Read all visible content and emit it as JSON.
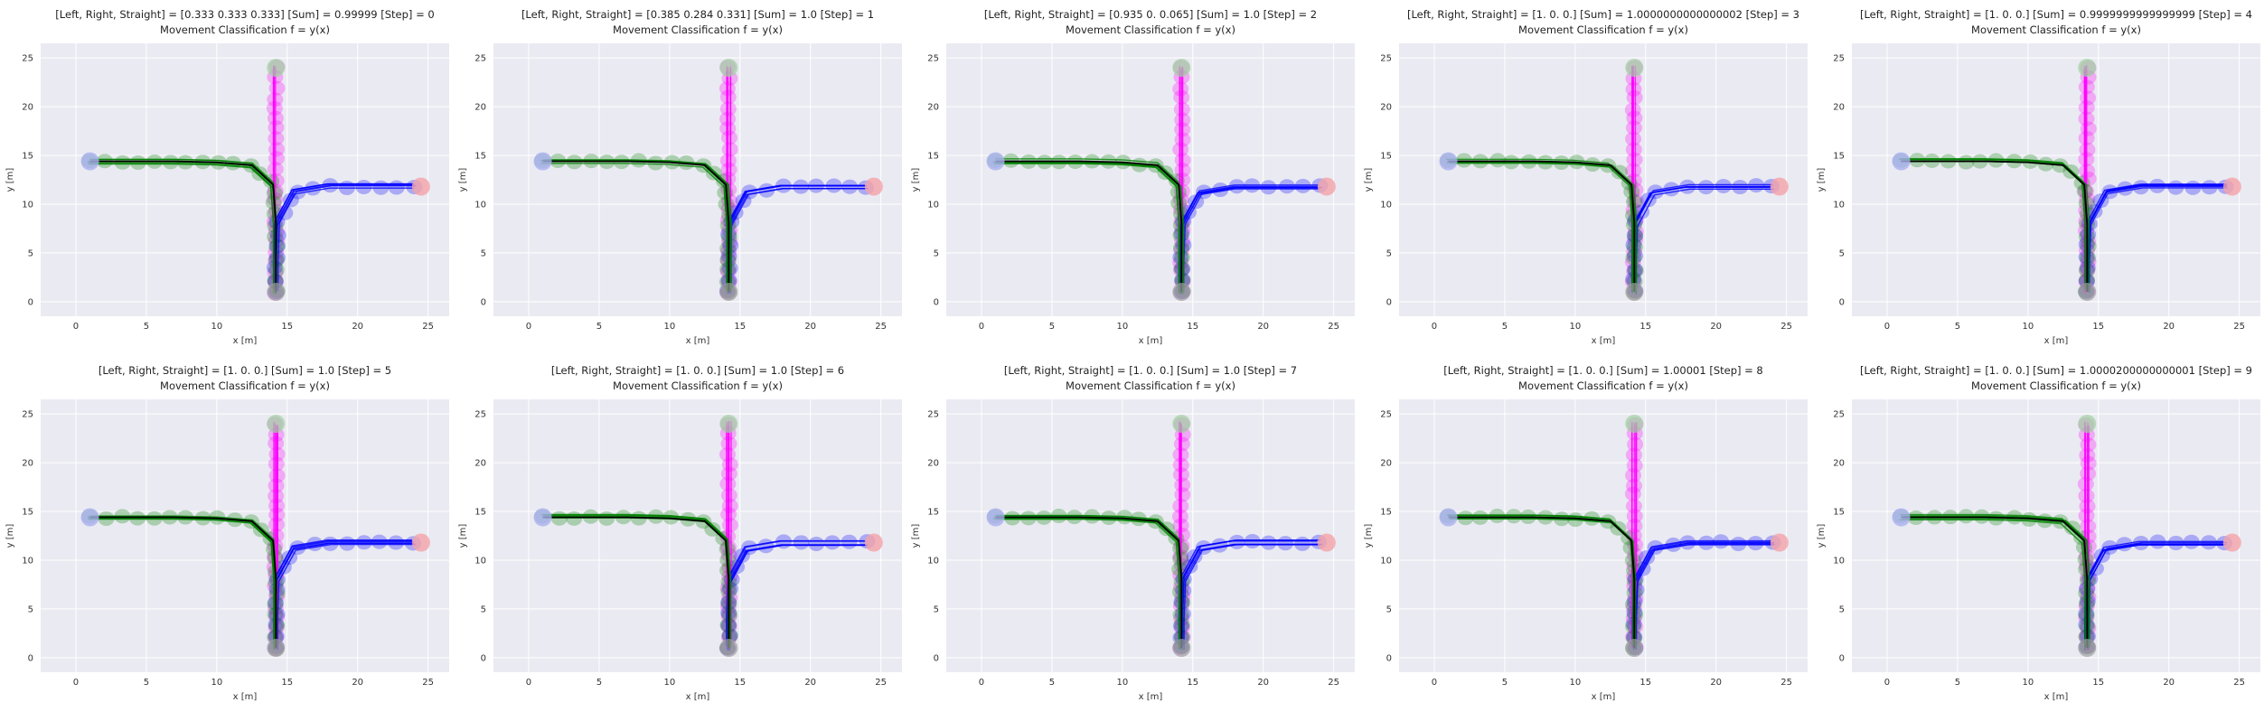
{
  "figure": {
    "title_line2": "Movement Classification f = y(x)",
    "xlabel": "x [m]",
    "ylabel": "y [m]",
    "xticks": [
      0,
      5,
      10,
      15,
      20,
      25
    ],
    "yticks": [
      0,
      5,
      10,
      15,
      20,
      25
    ],
    "xlim": [
      -2.5,
      26.5
    ],
    "ylim": [
      -1.5,
      26.5
    ],
    "colors": {
      "background": "#eaeaf2",
      "grid": "#ffffff",
      "left_track": "#008000",
      "right_track": "#0000ff",
      "straight_track": "#ff00ff",
      "main_path": "#000000",
      "start_marker_left": "#aab0f0",
      "start_marker_right": "#f4a3a8",
      "start_marker_bottom": "#a0a0a0",
      "start_marker_top": "#9fd19f"
    }
  },
  "chart_data": [
    {
      "type": "line",
      "step": 0,
      "title": "[Left, Right, Straight] = [0.333 0.333 0.333]   [Sum] = 0.99999   [Step] = 0",
      "probabilities": {
        "left": 0.333,
        "right": 0.333,
        "straight": 0.333
      },
      "sum": "0.99999"
    },
    {
      "type": "line",
      "step": 1,
      "title": "[Left, Right, Straight] = [0.385 0.284 0.331]   [Sum] = 1.0   [Step] = 1",
      "probabilities": {
        "left": 0.385,
        "right": 0.284,
        "straight": 0.331
      },
      "sum": "1.0"
    },
    {
      "type": "line",
      "step": 2,
      "title": "[Left, Right, Straight] = [0.935 0.    0.065]   [Sum] = 1.0   [Step] = 2",
      "probabilities": {
        "left": 0.935,
        "right": 0.0,
        "straight": 0.065
      },
      "sum": "1.0"
    },
    {
      "type": "line",
      "step": 3,
      "title": "[Left, Right, Straight] = [1. 0. 0.]   [Sum] = 1.0000000000000002   [Step] = 3",
      "probabilities": {
        "left": 1.0,
        "right": 0.0,
        "straight": 0.0
      },
      "sum": "1.0000000000000002"
    },
    {
      "type": "line",
      "step": 4,
      "title": "[Left, Right, Straight] = [1. 0. 0.]   [Sum] = 0.9999999999999999   [Step] = 4",
      "probabilities": {
        "left": 1.0,
        "right": 0.0,
        "straight": 0.0
      },
      "sum": "0.9999999999999999"
    },
    {
      "type": "line",
      "step": 5,
      "title": "[Left, Right, Straight] = [1. 0. 0.]   [Sum] = 1.0   [Step] = 5",
      "probabilities": {
        "left": 1.0,
        "right": 0.0,
        "straight": 0.0
      },
      "sum": "1.0"
    },
    {
      "type": "line",
      "step": 6,
      "title": "[Left, Right, Straight] = [1. 0. 0.]   [Sum] = 1.0   [Step] = 6",
      "probabilities": {
        "left": 1.0,
        "right": 0.0,
        "straight": 0.0
      },
      "sum": "1.0"
    },
    {
      "type": "line",
      "step": 7,
      "title": "[Left, Right, Straight] = [1. 0. 0.]   [Sum] = 1.0   [Step] = 7",
      "probabilities": {
        "left": 1.0,
        "right": 0.0,
        "straight": 0.0
      },
      "sum": "1.0"
    },
    {
      "type": "line",
      "step": 8,
      "title": "[Left, Right, Straight] = [1. 0. 0.]   [Sum] = 1.00001   [Step] = 8",
      "probabilities": {
        "left": 1.0,
        "right": 0.0,
        "straight": 0.0
      },
      "sum": "1.00001"
    },
    {
      "type": "line",
      "step": 9,
      "title": "[Left, Right, Straight] = [1. 0. 0.]   [Sum] = 1.0000200000000001   [Step] = 9",
      "probabilities": {
        "left": 1.0,
        "right": 0.0,
        "straight": 0.0
      },
      "sum": "1.0000200000000001"
    }
  ],
  "tracks": {
    "left": {
      "x": [
        14.2,
        14.2,
        14.2,
        14.0,
        12.5,
        10,
        7,
        4,
        1
      ],
      "y": [
        1,
        4,
        8,
        12,
        14,
        14.3,
        14.4,
        14.4,
        14.4
      ]
    },
    "right": {
      "x": [
        14.2,
        14.2,
        14.3,
        15.5,
        18,
        21,
        24
      ],
      "y": [
        1,
        4,
        8,
        11.2,
        11.8,
        11.8,
        11.8
      ]
    },
    "straight": {
      "x": [
        14.2,
        14.2,
        14.2,
        14.2,
        14.2,
        14.2
      ],
      "y": [
        1,
        5,
        10,
        15,
        20,
        24
      ]
    },
    "starts": {
      "left": {
        "x": 1,
        "y": 14.4
      },
      "right": {
        "x": 24.5,
        "y": 11.8
      },
      "bottom": {
        "x": 14.2,
        "y": 1
      },
      "top": {
        "x": 14.2,
        "y": 24
      }
    }
  }
}
